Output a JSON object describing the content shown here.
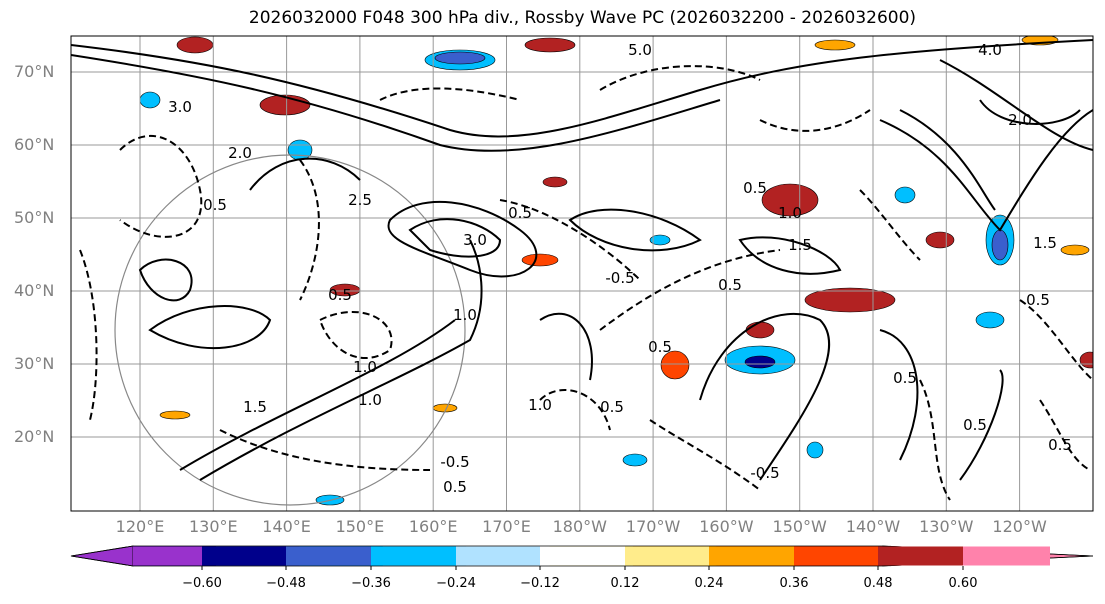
{
  "title": "2026032000 F048 300 hPa div., Rossby Wave PC (2026032200 - 2026032600)",
  "lat_labels": [
    "70°N",
    "60°N",
    "50°N",
    "40°N",
    "30°N",
    "20°N"
  ],
  "lon_labels": [
    "120°E",
    "130°E",
    "140°E",
    "150°E",
    "160°E",
    "170°E",
    "180°W",
    "170°W",
    "160°W",
    "150°W",
    "140°W",
    "130°W",
    "120°W"
  ],
  "colorbar": {
    "ticks": [
      "−0.60",
      "−0.48",
      "−0.36",
      "−0.24",
      "−0.12",
      "0.12",
      "0.24",
      "0.36",
      "0.48",
      "0.60"
    ],
    "colors": [
      "#9932cc",
      "#00008b",
      "#3a5fcd",
      "#00bfff",
      "#b0e2ff",
      "#ffffff",
      "#ffec8b",
      "#ffa500",
      "#ff4500",
      "#b22222",
      "#ff82ab"
    ]
  },
  "contour_labels": [
    "3.0",
    "2.0",
    "0.5",
    "1.0",
    "1.5",
    "2.5",
    "0.5",
    "1.0",
    "0.5",
    "-0.5",
    "0.5",
    "1.0",
    "3.0",
    "0.5",
    "1.0",
    "1.5",
    "0.5",
    "0.5",
    "0.5",
    "-0.5",
    "-0.5",
    "1.0",
    "0.5",
    "0.5",
    "4.0",
    "2.0",
    "0.5",
    "0.5",
    "5.0",
    "1.5"
  ]
}
